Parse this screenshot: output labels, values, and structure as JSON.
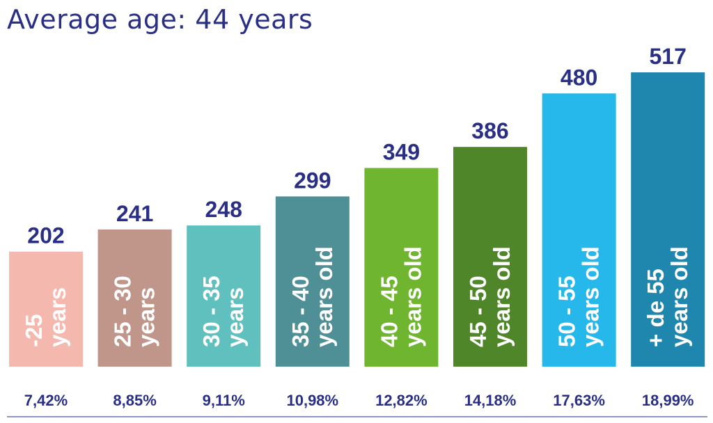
{
  "title": "Average age: 44 years",
  "chart_data": {
    "type": "bar",
    "title": "Average age: 44 years",
    "categories_lines": [
      [
        "-25",
        "years"
      ],
      [
        "25 - 30",
        "years"
      ],
      [
        "30 - 35",
        "years"
      ],
      [
        "35 - 40",
        "years old"
      ],
      [
        "40 - 45",
        "years old"
      ],
      [
        "45 - 50",
        "years old"
      ],
      [
        "50 - 55",
        "years old"
      ],
      [
        "+ de 55",
        "years old"
      ]
    ],
    "values": [
      202,
      241,
      248,
      299,
      349,
      386,
      480,
      517
    ],
    "value_labels": [
      "202",
      "241",
      "248",
      "299",
      "349",
      "386",
      "480",
      "517"
    ],
    "percentages": [
      "7,42%",
      "8,85%",
      "9,11%",
      "10,98%",
      "12,82%",
      "14,18%",
      "17,63%",
      "18,99%"
    ],
    "colors": [
      "#f5b8ae",
      "#c0968b",
      "#5fc0bd",
      "#4f8f96",
      "#6fb52f",
      "#4e8629",
      "#26b8ea",
      "#1f86ad"
    ],
    "label_color": "#2a2f86",
    "ylim": [
      0,
      517
    ]
  }
}
